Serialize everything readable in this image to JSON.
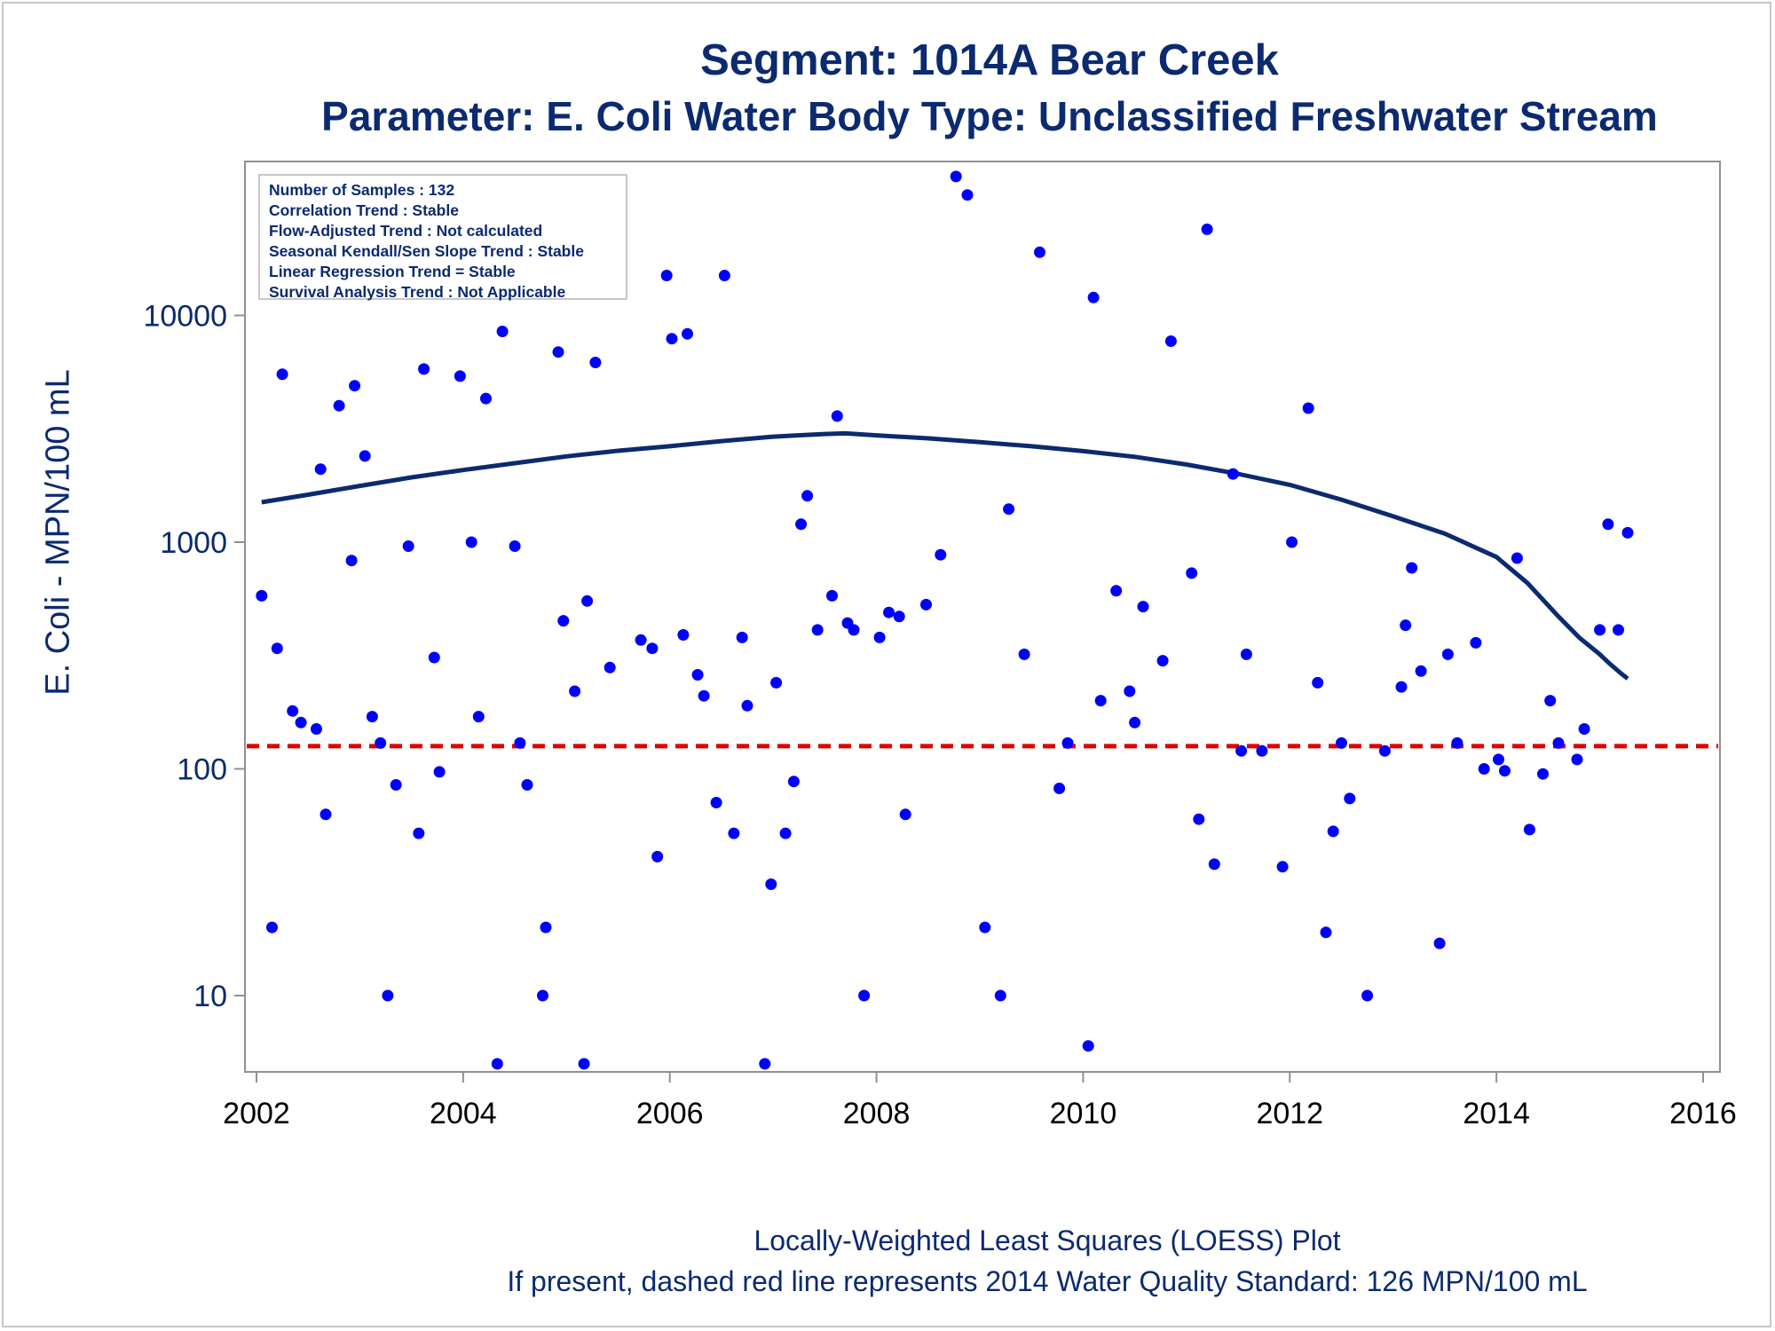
{
  "chart_data": {
    "type": "scatter",
    "title": "Segment: 1014A  Bear Creek",
    "subtitle": "Parameter: E. Coli   Water Body Type: Unclassified Freshwater Stream",
    "xlabel": "",
    "ylabel": "E. Coli - MPN/100 mL",
    "y_scale": "log",
    "xlim": [
      2002,
      2016
    ],
    "ylim": [
      4.4,
      50000
    ],
    "x_ticks": [
      "2002",
      "2004",
      "2006",
      "2008",
      "2010",
      "2012",
      "2014",
      "2016"
    ],
    "y_ticks": [
      "10",
      "100",
      "1000",
      "10000"
    ],
    "grid": false,
    "stats": [
      "Number of Samples : 132",
      "Correlation Trend : Stable",
      "Flow-Adjusted Trend : Not calculated",
      "Seasonal Kendall/Sen Slope Trend : Stable",
      "Linear Regression Trend = Stable",
      "Survival Analysis Trend : Not Applicable"
    ],
    "standard_line": {
      "value": 126,
      "color": "#e00000"
    },
    "loess_color": "#0b2a6f",
    "point_color": "#0000ff",
    "points": [
      [
        2002.05,
        580
      ],
      [
        2002.15,
        20
      ],
      [
        2002.2,
        340
      ],
      [
        2002.25,
        5500
      ],
      [
        2002.35,
        180
      ],
      [
        2002.43,
        160
      ],
      [
        2002.58,
        150
      ],
      [
        2002.62,
        2100
      ],
      [
        2002.67,
        63
      ],
      [
        2002.8,
        4000
      ],
      [
        2002.92,
        830
      ],
      [
        2002.95,
        4900
      ],
      [
        2003.05,
        2400
      ],
      [
        2003.12,
        170
      ],
      [
        2003.2,
        130
      ],
      [
        2003.27,
        10
      ],
      [
        2003.35,
        85
      ],
      [
        2003.47,
        960
      ],
      [
        2003.57,
        52
      ],
      [
        2003.62,
        5800
      ],
      [
        2003.72,
        310
      ],
      [
        2003.77,
        97
      ],
      [
        2003.92,
        15000
      ],
      [
        2003.97,
        5400
      ],
      [
        2004.08,
        1000
      ],
      [
        2004.15,
        170
      ],
      [
        2004.22,
        4300
      ],
      [
        2004.33,
        5
      ],
      [
        2004.38,
        8500
      ],
      [
        2004.5,
        960
      ],
      [
        2004.55,
        130
      ],
      [
        2004.62,
        85
      ],
      [
        2004.77,
        10
      ],
      [
        2004.8,
        20
      ],
      [
        2004.92,
        6900
      ],
      [
        2004.97,
        450
      ],
      [
        2005.08,
        220
      ],
      [
        2005.17,
        5
      ],
      [
        2005.2,
        550
      ],
      [
        2005.28,
        6200
      ],
      [
        2005.42,
        280
      ],
      [
        2005.72,
        370
      ],
      [
        2005.83,
        340
      ],
      [
        2005.88,
        41
      ],
      [
        2005.97,
        15000
      ],
      [
        2006.02,
        7900
      ],
      [
        2006.13,
        390
      ],
      [
        2006.17,
        8300
      ],
      [
        2006.27,
        260
      ],
      [
        2006.33,
        210
      ],
      [
        2006.45,
        71
      ],
      [
        2006.53,
        15000
      ],
      [
        2006.62,
        52
      ],
      [
        2006.7,
        380
      ],
      [
        2006.75,
        190
      ],
      [
        2006.92,
        5
      ],
      [
        2006.98,
        31
      ],
      [
        2007.03,
        240
      ],
      [
        2007.12,
        52
      ],
      [
        2007.2,
        88
      ],
      [
        2007.27,
        1200
      ],
      [
        2007.33,
        1600
      ],
      [
        2007.43,
        410
      ],
      [
        2007.57,
        580
      ],
      [
        2007.62,
        3600
      ],
      [
        2007.72,
        440
      ],
      [
        2007.78,
        410
      ],
      [
        2007.88,
        10
      ],
      [
        2008.03,
        380
      ],
      [
        2008.12,
        490
      ],
      [
        2008.22,
        470
      ],
      [
        2008.28,
        63
      ],
      [
        2008.48,
        530
      ],
      [
        2008.62,
        880
      ],
      [
        2008.77,
        41000
      ],
      [
        2008.88,
        34000
      ],
      [
        2009.05,
        20
      ],
      [
        2009.2,
        10
      ],
      [
        2009.28,
        1400
      ],
      [
        2009.43,
        320
      ],
      [
        2009.58,
        19000
      ],
      [
        2009.77,
        82
      ],
      [
        2009.85,
        130
      ],
      [
        2010.05,
        6
      ],
      [
        2010.1,
        12000
      ],
      [
        2010.17,
        200
      ],
      [
        2010.32,
        610
      ],
      [
        2010.45,
        220
      ],
      [
        2010.5,
        160
      ],
      [
        2010.58,
        520
      ],
      [
        2010.77,
        300
      ],
      [
        2010.85,
        7700
      ],
      [
        2011.05,
        730
      ],
      [
        2011.12,
        60
      ],
      [
        2011.2,
        24000
      ],
      [
        2011.27,
        38
      ],
      [
        2011.45,
        2000
      ],
      [
        2011.53,
        120
      ],
      [
        2011.58,
        320
      ],
      [
        2011.73,
        120
      ],
      [
        2011.93,
        37
      ],
      [
        2012.02,
        1000
      ],
      [
        2012.18,
        3900
      ],
      [
        2012.27,
        240
      ],
      [
        2012.35,
        19
      ],
      [
        2012.42,
        53
      ],
      [
        2012.5,
        130
      ],
      [
        2012.58,
        74
      ],
      [
        2012.75,
        10
      ],
      [
        2012.92,
        120
      ],
      [
        2013.08,
        230
      ],
      [
        2013.12,
        430
      ],
      [
        2013.18,
        770
      ],
      [
        2013.27,
        270
      ],
      [
        2013.45,
        17
      ],
      [
        2013.53,
        320
      ],
      [
        2013.62,
        130
      ],
      [
        2013.8,
        360
      ],
      [
        2013.88,
        100
      ],
      [
        2014.02,
        110
      ],
      [
        2014.08,
        98
      ],
      [
        2014.2,
        850
      ],
      [
        2014.32,
        54
      ],
      [
        2014.45,
        95
      ],
      [
        2014.52,
        200
      ],
      [
        2014.6,
        130
      ],
      [
        2014.78,
        110
      ],
      [
        2014.85,
        150
      ],
      [
        2015.0,
        410
      ],
      [
        2015.08,
        1200
      ],
      [
        2015.18,
        410
      ],
      [
        2015.27,
        1100
      ]
    ],
    "loess": [
      [
        2002.05,
        1500
      ],
      [
        2002.5,
        1620
      ],
      [
        2003.0,
        1770
      ],
      [
        2003.5,
        1930
      ],
      [
        2004.0,
        2080
      ],
      [
        2004.5,
        2230
      ],
      [
        2005.0,
        2390
      ],
      [
        2005.5,
        2530
      ],
      [
        2006.0,
        2650
      ],
      [
        2006.5,
        2790
      ],
      [
        2007.0,
        2920
      ],
      [
        2007.5,
        3000
      ],
      [
        2007.7,
        3020
      ],
      [
        2008.0,
        2960
      ],
      [
        2008.5,
        2870
      ],
      [
        2009.0,
        2760
      ],
      [
        2009.5,
        2650
      ],
      [
        2010.0,
        2520
      ],
      [
        2010.5,
        2380
      ],
      [
        2011.0,
        2200
      ],
      [
        2011.5,
        2000
      ],
      [
        2012.0,
        1790
      ],
      [
        2012.5,
        1540
      ],
      [
        2013.0,
        1300
      ],
      [
        2013.5,
        1090
      ],
      [
        2014.0,
        860
      ],
      [
        2014.3,
        660
      ],
      [
        2014.6,
        470
      ],
      [
        2014.8,
        380
      ],
      [
        2015.0,
        320
      ],
      [
        2015.1,
        290
      ],
      [
        2015.2,
        265
      ],
      [
        2015.27,
        250
      ]
    ]
  },
  "footnotes": {
    "line1": "Locally-Weighted Least Squares (LOESS) Plot",
    "line2": "If present, dashed red line represents 2014 Water Quality Standard: 126 MPN/100 mL"
  }
}
